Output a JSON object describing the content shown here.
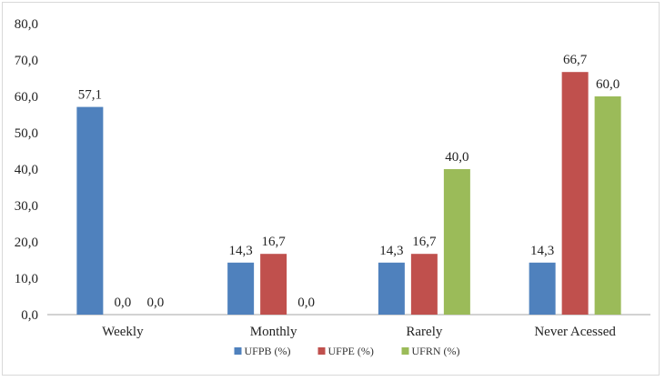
{
  "chart_data": {
    "type": "bar",
    "categories": [
      "Weekly",
      "Monthly",
      "Rarely",
      "Never Acessed"
    ],
    "series": [
      {
        "name": "UFPB (%)",
        "values": [
          57.1,
          14.3,
          14.3,
          14.3
        ],
        "color": "#4f81bd"
      },
      {
        "name": "UFPE (%)",
        "values": [
          0.0,
          16.7,
          16.7,
          66.7
        ],
        "color": "#c0504d"
      },
      {
        "name": "UFRN (%)",
        "values": [
          0.0,
          0.0,
          40.0,
          60.0
        ],
        "color": "#9bbb59"
      }
    ],
    "ylim": [
      0,
      80
    ],
    "yticks": [
      "0,0",
      "10,0",
      "20,0",
      "30,0",
      "40,0",
      "50,0",
      "60,0",
      "70,0",
      "80,0"
    ],
    "data_labels": [
      [
        "57,1",
        "14,3",
        "14,3",
        "14,3"
      ],
      [
        "0,0",
        "16,7",
        "16,7",
        "66,7"
      ],
      [
        "0,0",
        "0,0",
        "40,0",
        "60,0"
      ]
    ],
    "grid": false,
    "legend": "bottom"
  }
}
